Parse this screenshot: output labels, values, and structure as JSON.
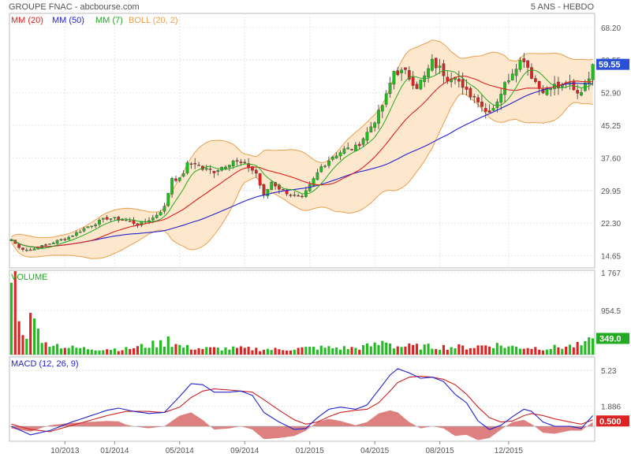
{
  "header": {
    "title": "GROUPE FNAC - abcbourse.com",
    "period": "5 ANS - HEBDO"
  },
  "colors": {
    "up": "#22bb22",
    "down": "#dd2222",
    "mm20": "#dd2222",
    "mm50": "#2222cc",
    "mm7": "#22aa22",
    "boll_fill": "#fde3c4",
    "boll_line": "#e8a050",
    "macd": "#2222cc",
    "signal": "#cc2222",
    "hist": "#d96a6a",
    "last_price_bg": "#2a50d8",
    "last_volume_bg": "#22aa22",
    "last_macd_bg": "#dd2222"
  },
  "chart_data": [
    {
      "type": "candlestick",
      "name": "price",
      "legend": [
        {
          "label": "MM (20)",
          "color": "#dd2222"
        },
        {
          "label": "MM (50)",
          "color": "#2222cc"
        },
        {
          "label": "MM (7)",
          "color": "#22aa22"
        },
        {
          "label": "BOLL (20, 2)",
          "color": "#e8a050"
        }
      ],
      "y_ticks": [
        "68.20",
        "60.55",
        "52.90",
        "45.25",
        "37.60",
        "29.95",
        "22.30",
        "14.65"
      ],
      "y_values": [
        68.2,
        60.55,
        52.9,
        45.25,
        37.6,
        29.95,
        22.3,
        14.65
      ],
      "ylim": [
        11.8,
        71.5
      ],
      "last_label": "59.55",
      "last_value": 59.55,
      "anchors": [
        [
          0,
          18.5
        ],
        [
          2,
          16.5
        ],
        [
          5,
          16.0
        ],
        [
          10,
          17.5
        ],
        [
          15,
          19.0
        ],
        [
          20,
          21.5
        ],
        [
          25,
          23.5
        ],
        [
          30,
          23.0
        ],
        [
          33,
          22.0
        ],
        [
          37,
          23.5
        ],
        [
          40,
          26.0
        ],
        [
          42,
          33.0
        ],
        [
          44,
          32.5
        ],
        [
          46,
          36.0
        ],
        [
          48,
          36.5
        ],
        [
          50,
          35.0
        ],
        [
          53,
          34.5
        ],
        [
          55,
          35.5
        ],
        [
          58,
          37.0
        ],
        [
          62,
          35.5
        ],
        [
          64,
          34.0
        ],
        [
          66,
          28.5
        ],
        [
          68,
          32.0
        ],
        [
          70,
          30.5
        ],
        [
          73,
          29.0
        ],
        [
          76,
          28.0
        ],
        [
          78,
          31.0
        ],
        [
          81,
          35.5
        ],
        [
          84,
          38.0
        ],
        [
          87,
          39.5
        ],
        [
          90,
          40.0
        ],
        [
          93,
          43.5
        ],
        [
          96,
          48.0
        ],
        [
          98,
          52.0
        ],
        [
          100,
          58.0
        ],
        [
          103,
          57.5
        ],
        [
          106,
          54.5
        ],
        [
          108,
          56.5
        ],
        [
          110,
          60.0
        ],
        [
          112,
          58.5
        ],
        [
          114,
          56.5
        ],
        [
          116,
          57.5
        ],
        [
          118,
          53.5
        ],
        [
          120,
          52.5
        ],
        [
          122,
          51.5
        ],
        [
          124,
          48.5
        ],
        [
          126,
          49.5
        ],
        [
          128,
          53.0
        ],
        [
          130,
          56.5
        ],
        [
          132,
          59.5
        ],
        [
          134,
          61.0
        ],
        [
          136,
          57.0
        ],
        [
          138,
          54.0
        ],
        [
          140,
          53.5
        ],
        [
          142,
          54.5
        ],
        [
          144,
          54.0
        ],
        [
          146,
          55.0
        ],
        [
          148,
          53.0
        ],
        [
          150,
          54.5
        ],
        [
          152,
          59.5
        ]
      ]
    },
    {
      "type": "bar",
      "name": "volume",
      "title": "VOLUME",
      "y_ticks": [
        "1 767",
        "954.5"
      ],
      "y_values": [
        1767,
        954.5
      ],
      "ylim": [
        0,
        1820
      ],
      "last_label": "349.0",
      "last_value": 349,
      "anchors": [
        [
          0,
          1550
        ],
        [
          1,
          1800
        ],
        [
          2,
          720
        ],
        [
          3,
          420
        ],
        [
          4,
          340
        ],
        [
          5,
          900
        ],
        [
          6,
          780
        ],
        [
          7,
          560
        ],
        [
          8,
          250
        ],
        [
          10,
          280
        ],
        [
          12,
          210
        ],
        [
          15,
          150
        ],
        [
          20,
          130
        ],
        [
          30,
          120
        ],
        [
          40,
          260
        ],
        [
          41,
          420
        ],
        [
          42,
          240
        ],
        [
          45,
          160
        ],
        [
          50,
          130
        ],
        [
          60,
          130
        ],
        [
          70,
          110
        ],
        [
          80,
          150
        ],
        [
          90,
          140
        ],
        [
          96,
          220
        ],
        [
          98,
          320
        ],
        [
          100,
          180
        ],
        [
          110,
          170
        ],
        [
          120,
          160
        ],
        [
          126,
          220
        ],
        [
          130,
          170
        ],
        [
          140,
          140
        ],
        [
          150,
          210
        ],
        [
          152,
          349
        ]
      ]
    },
    {
      "type": "line",
      "name": "macd",
      "title": "MACD (12, 26, 9)",
      "y_ticks": [
        "5.23",
        "1.886"
      ],
      "y_values": [
        5.23,
        1.886
      ],
      "ylim": [
        -1.4,
        6.5
      ],
      "last_label": "0.500",
      "last_value": 0.5,
      "macd_anchors": [
        [
          0,
          0.0
        ],
        [
          5,
          -0.8
        ],
        [
          10,
          -0.4
        ],
        [
          15,
          0.3
        ],
        [
          20,
          0.9
        ],
        [
          25,
          1.5
        ],
        [
          28,
          1.7
        ],
        [
          32,
          1.4
        ],
        [
          36,
          1.2
        ],
        [
          40,
          1.3
        ],
        [
          44,
          2.8
        ],
        [
          47,
          4.0
        ],
        [
          50,
          3.9
        ],
        [
          53,
          3.2
        ],
        [
          57,
          3.2
        ],
        [
          60,
          3.3
        ],
        [
          63,
          2.9
        ],
        [
          66,
          1.3
        ],
        [
          70,
          0.4
        ],
        [
          74,
          -0.3
        ],
        [
          77,
          -0.2
        ],
        [
          80,
          0.8
        ],
        [
          83,
          1.6
        ],
        [
          86,
          1.8
        ],
        [
          90,
          1.6
        ],
        [
          93,
          2.0
        ],
        [
          96,
          3.4
        ],
        [
          99,
          4.8
        ],
        [
          101,
          5.4
        ],
        [
          104,
          5.0
        ],
        [
          107,
          4.5
        ],
        [
          110,
          4.6
        ],
        [
          113,
          4.2
        ],
        [
          116,
          3.0
        ],
        [
          119,
          2.2
        ],
        [
          122,
          0.5
        ],
        [
          125,
          -0.3
        ],
        [
          128,
          0.1
        ],
        [
          131,
          0.9
        ],
        [
          134,
          1.6
        ],
        [
          136,
          1.4
        ],
        [
          139,
          0.4
        ],
        [
          142,
          0.0
        ],
        [
          146,
          0.0
        ],
        [
          149,
          -0.2
        ],
        [
          152,
          1.0
        ]
      ],
      "signal_anchors": [
        [
          0,
          0.2
        ],
        [
          5,
          -0.3
        ],
        [
          10,
          -0.5
        ],
        [
          15,
          0.0
        ],
        [
          20,
          0.5
        ],
        [
          25,
          1.0
        ],
        [
          30,
          1.4
        ],
        [
          35,
          1.4
        ],
        [
          40,
          1.3
        ],
        [
          44,
          1.8
        ],
        [
          47,
          2.7
        ],
        [
          50,
          3.3
        ],
        [
          53,
          3.5
        ],
        [
          57,
          3.4
        ],
        [
          60,
          3.3
        ],
        [
          63,
          3.2
        ],
        [
          66,
          2.5
        ],
        [
          70,
          1.5
        ],
        [
          74,
          0.6
        ],
        [
          77,
          0.2
        ],
        [
          80,
          0.4
        ],
        [
          83,
          0.9
        ],
        [
          86,
          1.3
        ],
        [
          90,
          1.5
        ],
        [
          93,
          1.6
        ],
        [
          96,
          2.2
        ],
        [
          99,
          3.3
        ],
        [
          101,
          4.1
        ],
        [
          104,
          4.6
        ],
        [
          107,
          4.7
        ],
        [
          110,
          4.6
        ],
        [
          113,
          4.4
        ],
        [
          116,
          3.9
        ],
        [
          119,
          3.0
        ],
        [
          122,
          1.8
        ],
        [
          125,
          0.8
        ],
        [
          128,
          0.4
        ],
        [
          131,
          0.5
        ],
        [
          134,
          1.0
        ],
        [
          136,
          1.2
        ],
        [
          139,
          1.0
        ],
        [
          142,
          0.7
        ],
        [
          146,
          0.4
        ],
        [
          149,
          0.2
        ],
        [
          152,
          0.6
        ]
      ]
    }
  ],
  "x_axis": {
    "count": 153,
    "ticks": [
      {
        "label": "10/2013",
        "index": 14
      },
      {
        "label": "01/2014",
        "index": 27
      },
      {
        "label": "05/2014",
        "index": 44
      },
      {
        "label": "09/2014",
        "index": 61
      },
      {
        "label": "01/2015",
        "index": 78
      },
      {
        "label": "04/2015",
        "index": 95
      },
      {
        "label": "08/2015",
        "index": 112
      },
      {
        "label": "12/2015",
        "index": 130
      }
    ]
  }
}
